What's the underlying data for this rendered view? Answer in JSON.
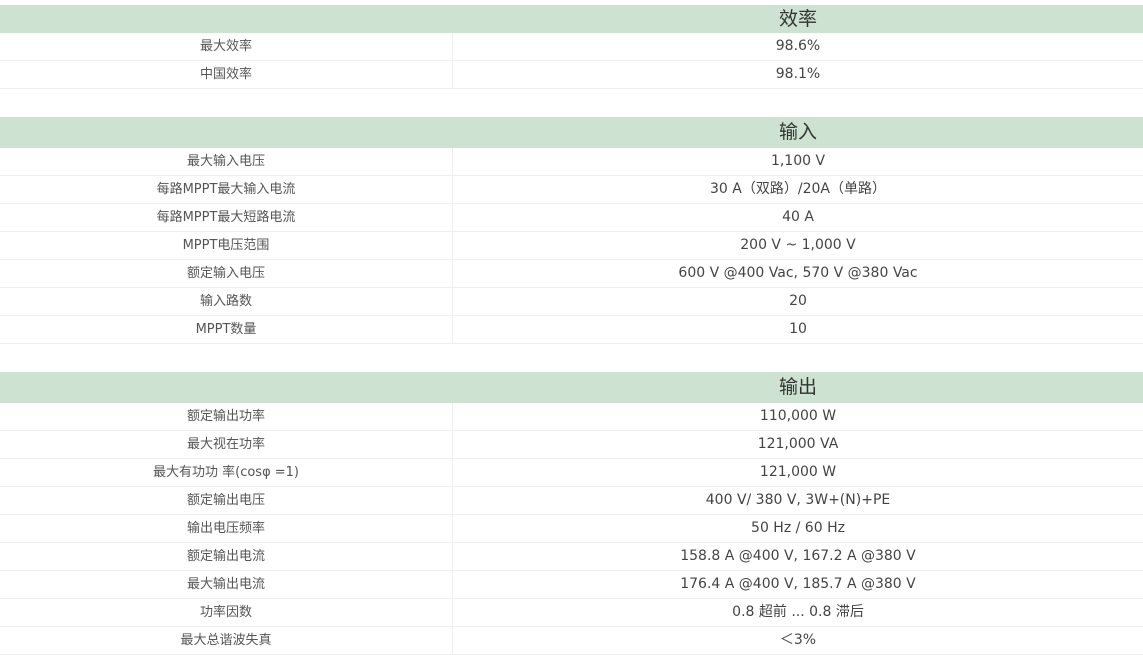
{
  "sections": [
    {
      "title": "效率",
      "rows": [
        {
          "label": "最大效率",
          "value": "98.6%"
        },
        {
          "label": "中国效率",
          "value": "98.1%"
        }
      ]
    },
    {
      "title": "输入",
      "rows": [
        {
          "label": "最大输入电压",
          "value": "1,100 V"
        },
        {
          "label": "每路MPPT最大输入电流",
          "value": "30 A（双路）/20A（单路）"
        },
        {
          "label": "每路MPPT最大短路电流",
          "value": "40 A"
        },
        {
          "label": "MPPT电压范围",
          "value": "200 V ~ 1,000 V"
        },
        {
          "label": "额定输入电压",
          "value": "600 V @400 Vac, 570 V @380 Vac"
        },
        {
          "label": "输入路数",
          "value": "20"
        },
        {
          "label": "MPPT数量",
          "value": "10"
        }
      ]
    },
    {
      "title": "输出",
      "rows": [
        {
          "label": "额定输出功率",
          "value": "110,000 W"
        },
        {
          "label": "最大视在功率",
          "value": "121,000 VA"
        },
        {
          "label": "最大有功功 率(cosφ =1)",
          "value": "121,000 W"
        },
        {
          "label": "额定输出电压",
          "value": "400 V/ 380 V,  3W+(N)+PE"
        },
        {
          "label": "输出电压频率",
          "value": "50 Hz / 60 Hz"
        },
        {
          "label": "额定输出电流",
          "value": "158.8 A @400 V, 167.2 A @380 V"
        },
        {
          "label": "最大输出电流",
          "value": "176.4 A @400 V, 185.7 A @380 V"
        },
        {
          "label": "功率因数",
          "value": "0.8 超前 ... 0.8 滞后"
        },
        {
          "label": "最大总谐波失真",
          "value": "＜3%"
        }
      ]
    }
  ],
  "colors": {
    "header_bg": "#cde2d0",
    "border": "#eeeeee"
  }
}
